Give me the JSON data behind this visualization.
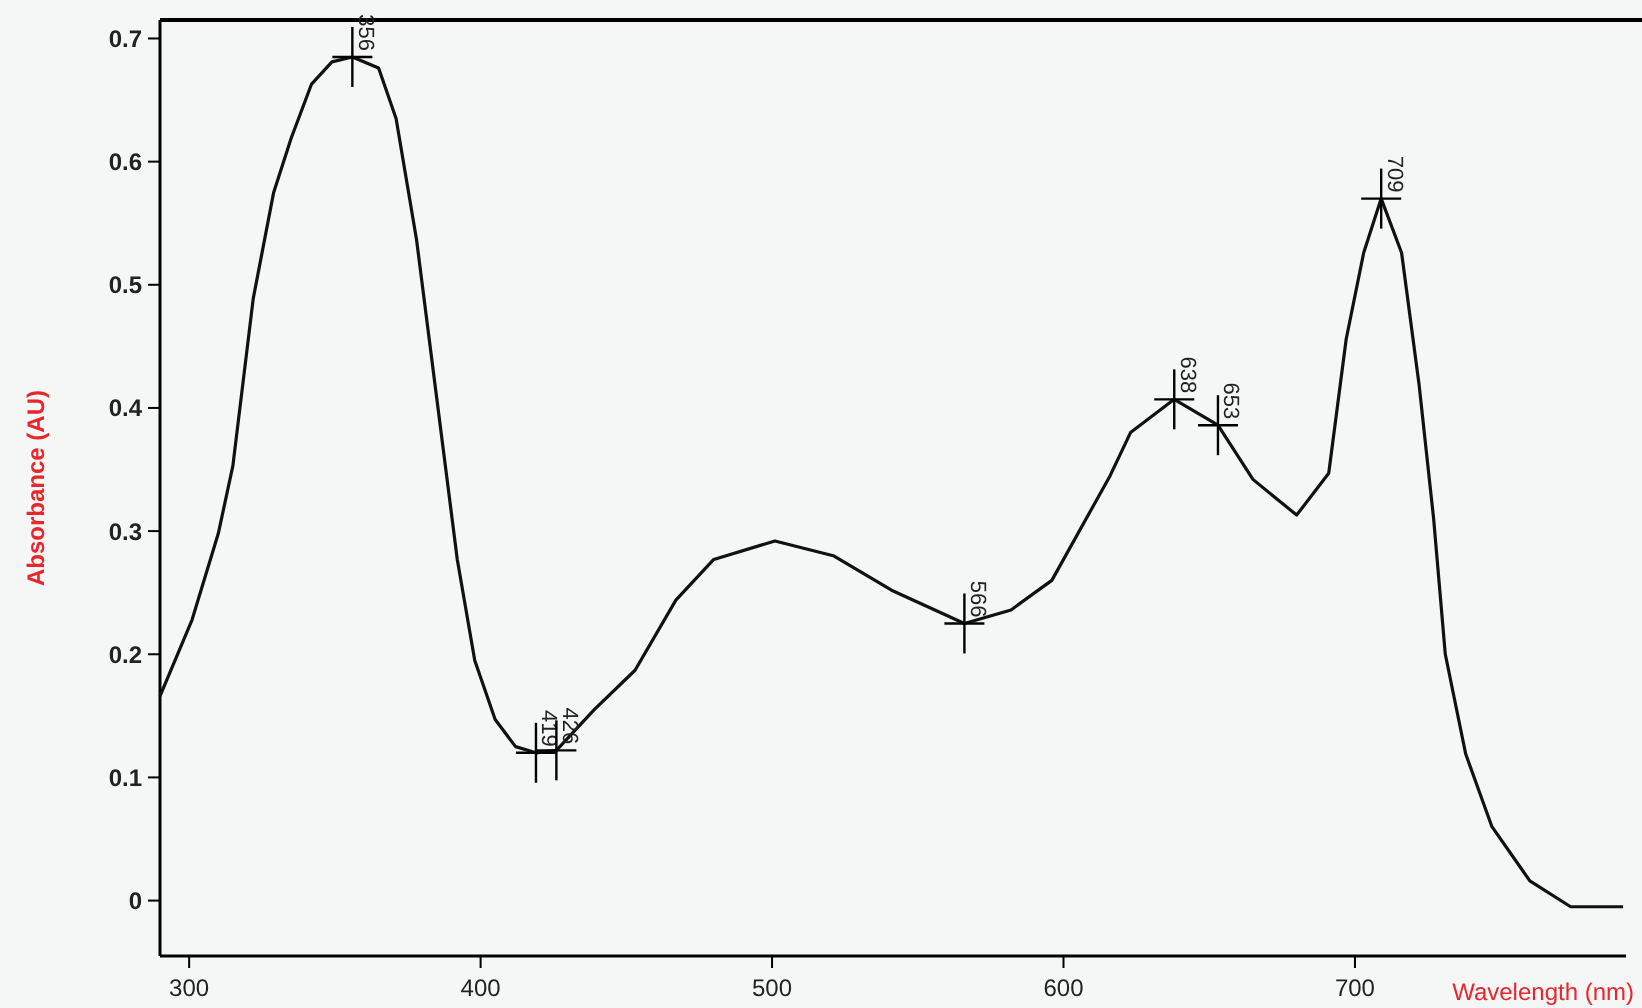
{
  "chart_data": {
    "type": "line",
    "xlabel": "Wavelength (nm)",
    "ylabel": "Absorbance (AU)",
    "x": [
      290,
      301,
      310,
      315,
      322,
      329,
      335,
      342,
      349,
      356,
      365,
      371,
      378,
      385,
      392,
      398,
      405,
      412,
      419,
      426,
      439,
      453,
      467,
      480,
      501,
      521,
      541,
      566,
      582,
      596,
      616,
      623,
      638,
      653,
      665,
      680,
      691,
      697,
      703,
      709,
      716,
      722,
      727,
      731,
      738,
      747,
      760,
      774,
      792
    ],
    "series": [
      {
        "color": "#111111",
        "values": [
          0.166,
          0.228,
          0.298,
          0.353,
          0.489,
          0.575,
          0.619,
          0.663,
          0.681,
          0.685,
          0.676,
          0.635,
          0.537,
          0.407,
          0.277,
          0.195,
          0.147,
          0.125,
          0.12,
          0.122,
          0.155,
          0.187,
          0.244,
          0.277,
          0.292,
          0.28,
          0.252,
          0.225,
          0.236,
          0.26,
          0.345,
          0.38,
          0.407,
          0.386,
          0.342,
          0.313,
          0.347,
          0.456,
          0.526,
          0.57,
          0.526,
          0.419,
          0.31,
          0.2,
          0.119,
          0.06,
          0.016,
          -0.005,
          -0.005
        ]
      }
    ],
    "xlim": [
      290,
      793
    ],
    "xticks": [
      300,
      400,
      500,
      600,
      700
    ],
    "ylim": [
      -0.045,
      0.715
    ],
    "yticks": [
      0,
      0.1,
      0.2,
      0.3,
      0.4,
      0.5,
      0.6,
      0.7
    ],
    "marker": "none",
    "line_style": "solid",
    "annotations": [
      {
        "text": "356",
        "x": 356,
        "y": 0.685
      },
      {
        "text": "419",
        "x": 419,
        "y": 0.12
      },
      {
        "text": "426",
        "x": 426,
        "y": 0.122
      },
      {
        "text": "566",
        "x": 566,
        "y": 0.225
      },
      {
        "text": "638",
        "x": 638,
        "y": 0.407
      },
      {
        "text": "653",
        "x": 653,
        "y": 0.386
      },
      {
        "text": "709",
        "x": 709,
        "y": 0.57
      }
    ]
  }
}
